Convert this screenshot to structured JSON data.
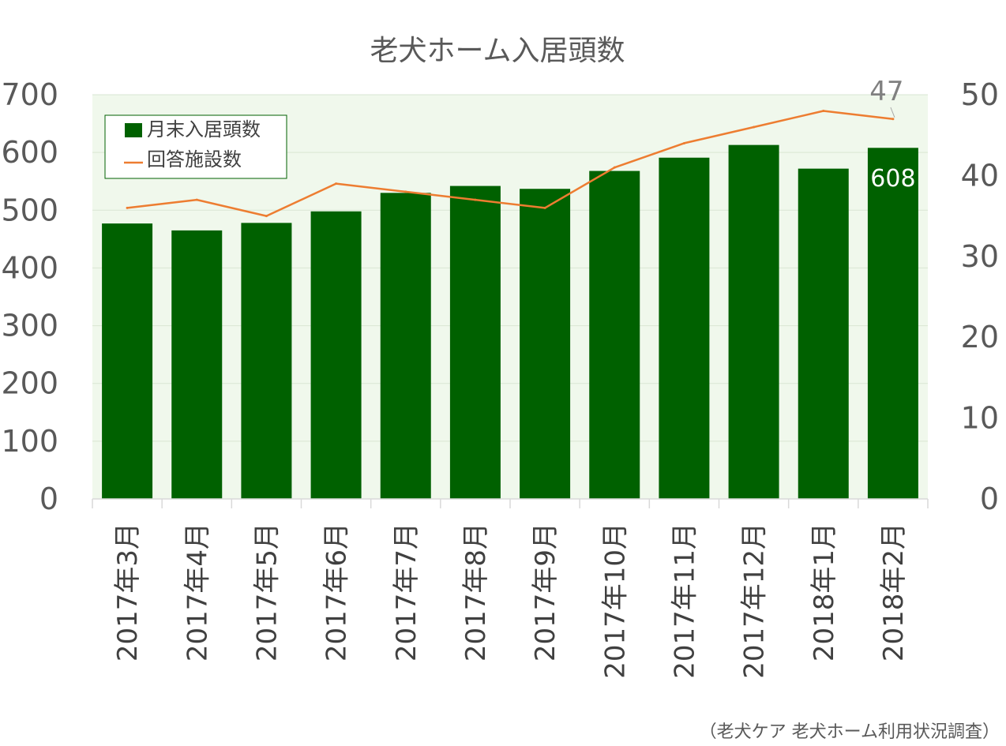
{
  "chart_data": {
    "type": "bar",
    "title": "老犬ホーム入居頭数",
    "categories": [
      "2017年3月",
      "2017年4月",
      "2017年5月",
      "2017年6月",
      "2017年7月",
      "2017年8月",
      "2017年9月",
      "2017年10月",
      "2017年11月",
      "2017年12月",
      "2018年1月",
      "2018年2月"
    ],
    "series": [
      {
        "name": "月末入居頭数",
        "type": "bar",
        "axis": "left",
        "color": "#006100",
        "values": [
          477,
          465,
          478,
          498,
          530,
          542,
          537,
          568,
          591,
          613,
          572,
          608
        ]
      },
      {
        "name": "回答施設数",
        "type": "line",
        "axis": "right",
        "color": "#ED7D31",
        "values": [
          36,
          37,
          35,
          39,
          38,
          37,
          36,
          41,
          44,
          46,
          48,
          47
        ]
      }
    ],
    "y_left": {
      "min": 0,
      "max": 700,
      "ticks": [
        "0",
        "100",
        "200",
        "300",
        "400",
        "500",
        "600",
        "700"
      ]
    },
    "y_right": {
      "min": 0,
      "max": 50,
      "ticks": [
        "0",
        "10",
        "20",
        "30",
        "40",
        "50"
      ]
    },
    "data_labels": {
      "bar_last": "608",
      "line_last": "47"
    },
    "legend_position": "top-left",
    "grid": true,
    "plot_background": "#F0F8EC",
    "source": "（老犬ケア 老犬ホーム利用状況調査）"
  }
}
